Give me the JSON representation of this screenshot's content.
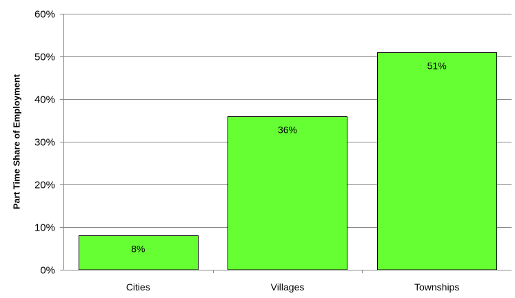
{
  "chart_data": {
    "type": "bar",
    "title": "",
    "xlabel": "",
    "ylabel": "Part Time Share of Employment",
    "categories": [
      "Cities",
      "Villages",
      "Townships"
    ],
    "values": [
      0.08,
      0.36,
      0.51
    ],
    "data_labels": [
      "8%",
      "36%",
      "51%"
    ],
    "ylim": [
      0,
      0.6
    ],
    "y_ticks": [
      0,
      0.1,
      0.2,
      0.3,
      0.4,
      0.5,
      0.6
    ],
    "y_tick_labels": [
      "0%",
      "10%",
      "20%",
      "30%",
      "40%",
      "50%",
      "60%"
    ],
    "grid": true,
    "legend": "none",
    "colors": {
      "bar_fill": "#66FF33",
      "bar_stroke": "#000000",
      "grid": "#888888",
      "axis": "#888888"
    }
  }
}
